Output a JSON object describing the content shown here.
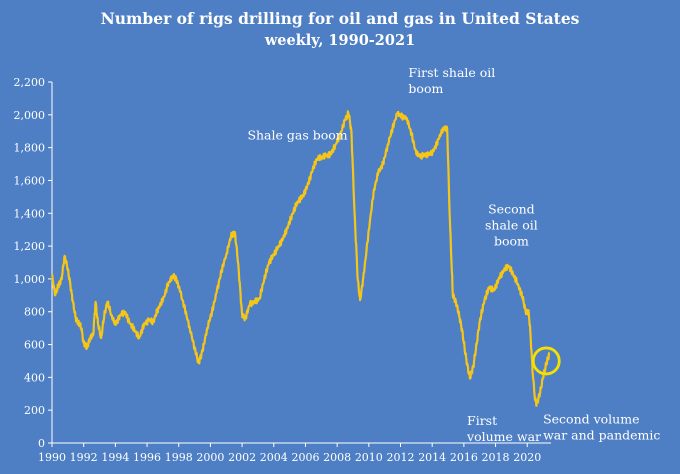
{
  "chart_data": {
    "type": "line",
    "title": "Number of rigs drilling for oil and gas in United States",
    "subtitle": "weekly, 1990-2021",
    "xlabel": "",
    "ylabel": "",
    "xlim": [
      1990,
      2021.5
    ],
    "ylim": [
      0,
      2200
    ],
    "yticks": [
      "0",
      "200",
      "400",
      "600",
      "800",
      "1,000",
      "1,200",
      "1,400",
      "1,600",
      "1,800",
      "2,000",
      "2,200"
    ],
    "xticks": [
      "1990",
      "1992",
      "1994",
      "1996",
      "1998",
      "2000",
      "2002",
      "2004",
      "2006",
      "2008",
      "2010",
      "2012",
      "2014",
      "2016",
      "2018",
      "2020"
    ],
    "grid": false,
    "colors": {
      "line": "#f5c518",
      "background": "#4e7fc4",
      "text": "#ffffff",
      "highlight": "#f5e000"
    },
    "series": [
      {
        "x": [
          1990.0,
          1990.2,
          1990.4,
          1990.6,
          1990.8,
          1990.95,
          1991.1,
          1991.3,
          1991.5,
          1991.7,
          1991.85,
          1992.0,
          1992.2,
          1992.4,
          1992.6,
          1992.75,
          1992.9,
          1993.1,
          1993.3,
          1993.5,
          1993.75,
          1994.0,
          1994.3,
          1994.6,
          1994.9,
          1995.2,
          1995.5,
          1995.8,
          1996.1,
          1996.4,
          1996.7,
          1997.0,
          1997.3,
          1997.6,
          1997.85,
          1998.1,
          1998.4,
          1998.7,
          1999.0,
          1999.25,
          1999.5,
          1999.8,
          2000.1,
          2000.4,
          2000.7,
          2001.0,
          2001.3,
          2001.55,
          2001.75,
          2002.0,
          2002.2,
          2002.5,
          2002.8,
          2003.1,
          2003.4,
          2003.7,
          2004.0,
          2004.3,
          2004.6,
          2004.9,
          2005.2,
          2005.5,
          2005.8,
          2006.1,
          2006.4,
          2006.7,
          2007.0,
          2007.3,
          2007.6,
          2007.9,
          2008.2,
          2008.5,
          2008.72,
          2008.9,
          2009.1,
          2009.3,
          2009.45,
          2009.7,
          2010.0,
          2010.3,
          2010.6,
          2010.9,
          2011.2,
          2011.5,
          2011.8,
          2012.1,
          2012.4,
          2012.7,
          2013.0,
          2013.3,
          2013.6,
          2013.9,
          2014.2,
          2014.5,
          2014.75,
          2014.95,
          2015.1,
          2015.3,
          2015.5,
          2015.7,
          2015.9,
          2016.1,
          2016.3,
          2016.4,
          2016.6,
          2016.8,
          2017.0,
          2017.3,
          2017.6,
          2017.9,
          2018.2,
          2018.5,
          2018.8,
          2019.1,
          2019.4,
          2019.7,
          2019.9,
          2020.1,
          2020.2,
          2020.35,
          2020.5,
          2020.6,
          2020.8,
          2021.0,
          2021.2,
          2021.4
        ],
        "values": [
          1020,
          900,
          960,
          1000,
          1140,
          1080,
          1000,
          870,
          760,
          730,
          700,
          610,
          580,
          640,
          660,
          860,
          730,
          640,
          780,
          860,
          780,
          720,
          780,
          800,
          730,
          690,
          640,
          720,
          750,
          740,
          820,
          870,
          960,
          1020,
          1000,
          920,
          810,
          700,
          580,
          490,
          560,
          700,
          800,
          920,
          1050,
          1150,
          1260,
          1280,
          1100,
          780,
          760,
          850,
          860,
          880,
          1000,
          1100,
          1150,
          1200,
          1250,
          1320,
          1400,
          1470,
          1500,
          1560,
          1650,
          1730,
          1740,
          1750,
          1760,
          1820,
          1880,
          1970,
          2010,
          1900,
          1400,
          1000,
          870,
          1040,
          1300,
          1530,
          1650,
          1700,
          1820,
          1920,
          2010,
          1990,
          1980,
          1880,
          1760,
          1750,
          1760,
          1760,
          1800,
          1880,
          1920,
          1910,
          1400,
          900,
          860,
          780,
          680,
          540,
          430,
          400,
          470,
          600,
          740,
          870,
          950,
          930,
          1000,
          1050,
          1080,
          1030,
          970,
          890,
          800,
          790,
          670,
          420,
          260,
          240,
          300,
          400,
          480,
          550
        ]
      }
    ],
    "annotations": [
      {
        "lines": [
          "Shale gas boom"
        ],
        "at": [
          2005.5,
          1850
        ],
        "anchor": "middle"
      },
      {
        "lines": [
          "First shale oil",
          "boom"
        ],
        "at": [
          2012.5,
          2230
        ],
        "anchor": "start"
      },
      {
        "lines": [
          "Second",
          "shale oil",
          "boom"
        ],
        "at": [
          2019.0,
          1400
        ],
        "anchor": "middle"
      },
      {
        "lines": [
          "First",
          "volume war"
        ],
        "at": [
          2016.2,
          110
        ],
        "anchor": "start"
      },
      {
        "lines": [
          "Second volume",
          "war and pandemic"
        ],
        "at": [
          2021.0,
          120
        ],
        "anchor": "start"
      }
    ],
    "highlight_circle": {
      "at": [
        2021.2,
        500
      ]
    }
  }
}
